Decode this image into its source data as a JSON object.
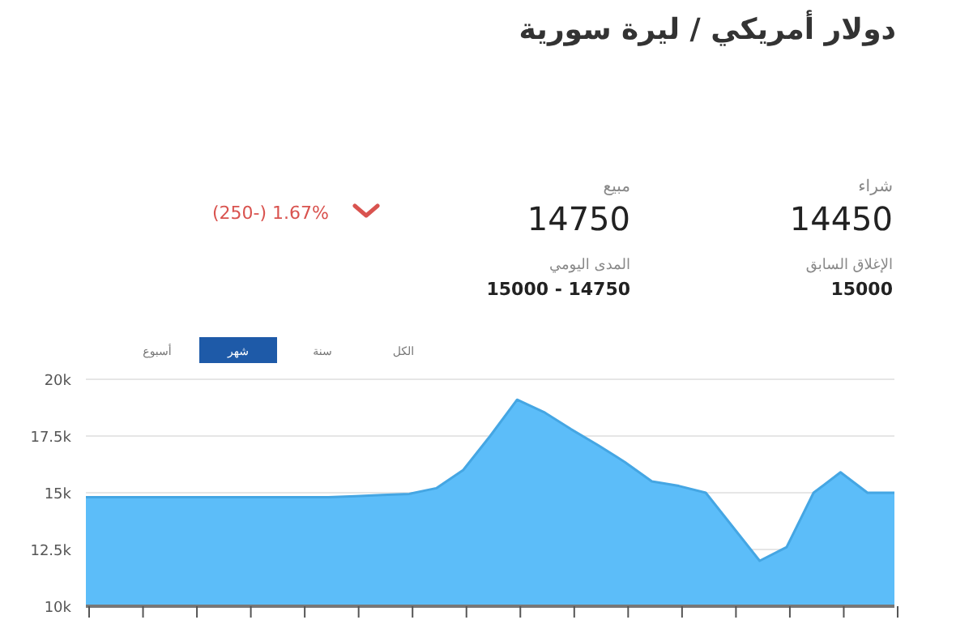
{
  "chart_data": {
    "type": "area",
    "title": "دولار أمريكي / ليرة سورية",
    "annotations": [
      "شراء",
      "14450",
      "مبيع",
      "14750",
      "(250-) 1.67%",
      "الإغلاق السابق",
      "15000",
      "المدى اليومي",
      "15000 - 14750",
      "الكل",
      "سنة",
      "شهر",
      "أسبوع"
    ],
    "categories": [
      null,
      null,
      null,
      null,
      null,
      null,
      null,
      null,
      null,
      null,
      null,
      null,
      null,
      null,
      null,
      null,
      null,
      null,
      null,
      null,
      null,
      null,
      null,
      null,
      null,
      null,
      null,
      null,
      null,
      null,
      null
    ],
    "series": [
      {
        "color": "#5cbdf9",
        "values": [
          14800,
          14800,
          14800,
          14800,
          14800,
          14800,
          14800,
          14800,
          14800,
          14800,
          14850,
          14900,
          14950,
          15200,
          16000,
          17500,
          19100,
          18550,
          17800,
          17100,
          16350,
          15500,
          15300,
          15000,
          13500,
          12000,
          12600,
          15000,
          15900,
          15000,
          15000
        ]
      }
    ],
    "ylim": [
      10000,
      20000
    ],
    "yticks": [
      {
        "value": 10000,
        "label": "10k"
      },
      {
        "value": 12500,
        "label": "12.5k"
      },
      {
        "value": 15000,
        "label": "15k"
      },
      {
        "value": 17500,
        "label": "17.5k"
      },
      {
        "value": 20000,
        "label": "20k"
      }
    ],
    "grid": "y"
  }
}
